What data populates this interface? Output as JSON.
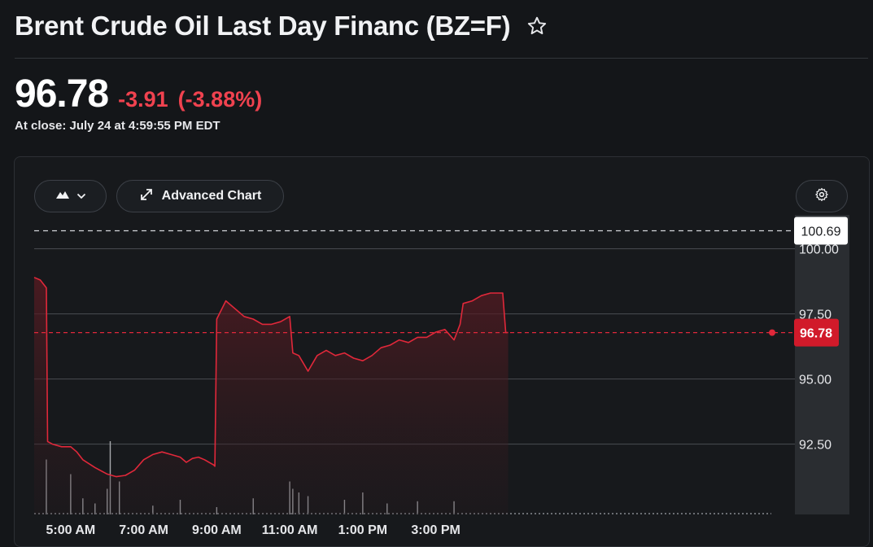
{
  "header": {
    "title": "Brent Crude Oil Last Day Financ (BZ=F)",
    "price": "96.78",
    "change": "-3.91",
    "change_pct": "(-3.88%)",
    "close_time": "At close: July 24 at 4:59:55 PM EDT"
  },
  "toolbar": {
    "chart_type_icon": "mountain-icon",
    "advanced_chart_label": "Advanced Chart",
    "settings_icon": "gear-icon"
  },
  "colors": {
    "background": "#141619",
    "line": "#e0283a",
    "negative": "#f0424f",
    "grid": "#4a4d52",
    "volume": "#a6a9ad"
  },
  "chart_data": {
    "type": "area",
    "title": "",
    "xlabel": "",
    "ylabel": "",
    "x_ticks": [
      "5:00 AM",
      "7:00 AM",
      "9:00 AM",
      "11:00 AM",
      "1:00 PM",
      "3:00 PM"
    ],
    "y_ticks": [
      "92.50",
      "95.00",
      "97.50",
      "100.00"
    ],
    "ylim": [
      89.8,
      101.3
    ],
    "previous_close": "100.69",
    "current_price": "96.78",
    "grid": true,
    "series": [
      {
        "x": [
          "4:00 AM",
          "4:10 AM",
          "4:20 AM",
          "4:22 AM",
          "4:30 AM",
          "4:45 AM",
          "5:00 AM",
          "5:10 AM",
          "5:20 AM",
          "5:40 AM",
          "6:00 AM",
          "6:15 AM",
          "6:30 AM",
          "6:45 AM",
          "7:00 AM",
          "7:15 AM",
          "7:30 AM",
          "7:45 AM",
          "8:00 AM",
          "8:10 AM",
          "8:20 AM",
          "8:30 AM",
          "8:40 AM",
          "8:55 AM",
          "8:57 AM",
          "9:00 AM",
          "9:15 AM",
          "9:30 AM",
          "9:45 AM",
          "10:00 AM",
          "10:15 AM",
          "10:30 AM",
          "10:45 AM",
          "11:00 AM",
          "11:05 AM",
          "11:15 AM",
          "11:30 AM",
          "11:45 AM",
          "12:00 PM",
          "12:15 PM",
          "12:30 PM",
          "12:45 PM",
          "1:00 PM",
          "1:15 PM",
          "1:30 PM",
          "1:45 PM",
          "2:00 PM",
          "2:15 PM",
          "2:30 PM",
          "2:45 PM",
          "3:00 PM",
          "3:15 PM",
          "3:30 PM",
          "3:40 PM",
          "3:45 PM",
          "4:00 PM",
          "4:15 PM",
          "4:30 PM",
          "4:50 PM",
          "4:55 PM",
          "4:59 PM"
        ],
        "y": [
          98.9,
          98.8,
          98.5,
          92.6,
          92.5,
          92.4,
          92.4,
          92.2,
          91.9,
          91.6,
          91.35,
          91.25,
          91.3,
          91.5,
          91.9,
          92.1,
          92.2,
          92.1,
          92.0,
          91.8,
          91.95,
          92.0,
          91.9,
          91.7,
          91.65,
          97.3,
          98.0,
          97.7,
          97.4,
          97.3,
          97.1,
          97.1,
          97.2,
          97.4,
          96.0,
          95.9,
          95.3,
          95.9,
          96.1,
          95.9,
          96.0,
          95.8,
          95.7,
          95.9,
          96.2,
          96.3,
          96.5,
          96.4,
          96.6,
          96.6,
          96.8,
          96.9,
          96.5,
          97.1,
          97.9,
          98.0,
          98.2,
          98.3,
          98.3,
          96.78,
          96.78
        ]
      }
    ],
    "volume": [
      {
        "x": "4:20 AM",
        "v": 0.75
      },
      {
        "x": "5:00 AM",
        "v": 0.55
      },
      {
        "x": "5:20 AM",
        "v": 0.22
      },
      {
        "x": "5:40 AM",
        "v": 0.15
      },
      {
        "x": "6:00 AM",
        "v": 0.35
      },
      {
        "x": "6:05 AM",
        "v": 1.0
      },
      {
        "x": "6:20 AM",
        "v": 0.45
      },
      {
        "x": "7:15 AM",
        "v": 0.12
      },
      {
        "x": "8:00 AM",
        "v": 0.2
      },
      {
        "x": "9:00 AM",
        "v": 0.1
      },
      {
        "x": "10:00 AM",
        "v": 0.22
      },
      {
        "x": "11:00 AM",
        "v": 0.45
      },
      {
        "x": "11:05 AM",
        "v": 0.35
      },
      {
        "x": "11:15 AM",
        "v": 0.3
      },
      {
        "x": "11:30 AM",
        "v": 0.25
      },
      {
        "x": "12:30 PM",
        "v": 0.2
      },
      {
        "x": "1:00 PM",
        "v": 0.3
      },
      {
        "x": "1:40 PM",
        "v": 0.15
      },
      {
        "x": "2:30 PM",
        "v": 0.18
      },
      {
        "x": "3:30 PM",
        "v": 0.18
      }
    ]
  }
}
